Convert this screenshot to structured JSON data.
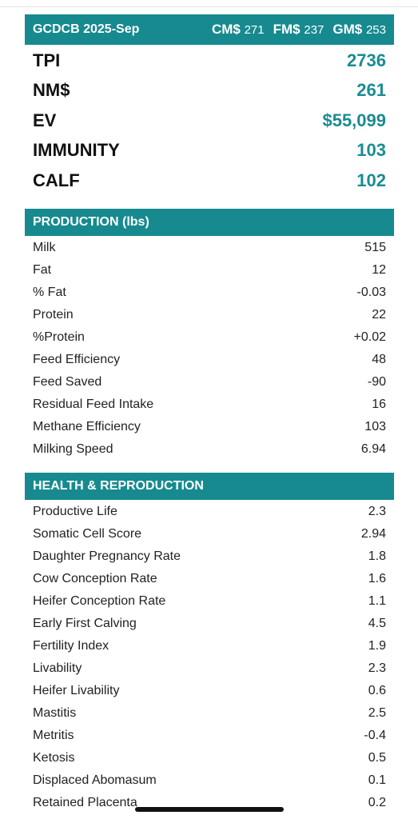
{
  "header": {
    "title": "GCDCB 2025-Sep",
    "merits": [
      {
        "label": "CM$",
        "value": "271"
      },
      {
        "label": "FM$",
        "value": "237"
      },
      {
        "label": "GM$",
        "value": "253"
      }
    ]
  },
  "summary": [
    {
      "label": "TPI",
      "value": "2736"
    },
    {
      "label": "NM$",
      "value": "261"
    },
    {
      "label": "EV",
      "value": "$55,099"
    },
    {
      "label": "IMMUNITY",
      "value": "103"
    },
    {
      "label": "CALF",
      "value": "102"
    }
  ],
  "production": {
    "title": "PRODUCTION (lbs)",
    "rows": [
      {
        "label": "Milk",
        "value": "515"
      },
      {
        "label": "Fat",
        "value": "12"
      },
      {
        "label": "% Fat",
        "value": "-0.03"
      },
      {
        "label": "Protein",
        "value": "22"
      },
      {
        "label": "%Protein",
        "value": "+0.02"
      },
      {
        "label": "Feed Efficiency",
        "value": "48"
      },
      {
        "label": "Feed Saved",
        "value": "-90"
      },
      {
        "label": "Residual Feed Intake",
        "value": "16"
      },
      {
        "label": "Methane Efficiency",
        "value": "103"
      },
      {
        "label": "Milking Speed",
        "value": "6.94"
      }
    ]
  },
  "health": {
    "title": "HEALTH & REPRODUCTION",
    "rows": [
      {
        "label": "Productive Life",
        "value": "2.3"
      },
      {
        "label": "Somatic Cell Score",
        "value": "2.94"
      },
      {
        "label": "Daughter Pregnancy Rate",
        "value": "1.8"
      },
      {
        "label": "Cow Conception Rate",
        "value": "1.6"
      },
      {
        "label": "Heifer Conception Rate",
        "value": "1.1"
      },
      {
        "label": "Early First Calving",
        "value": "4.5"
      },
      {
        "label": "Fertility Index",
        "value": "1.9"
      },
      {
        "label": "Livability",
        "value": "2.3"
      },
      {
        "label": "Heifer Livability",
        "value": "0.6"
      },
      {
        "label": "Mastitis",
        "value": "2.5"
      },
      {
        "label": "Metritis",
        "value": "-0.4"
      },
      {
        "label": "Ketosis",
        "value": "0.5"
      },
      {
        "label": "Displaced Abomasum",
        "value": "0.1"
      },
      {
        "label": "Retained Placenta",
        "value": "0.2"
      }
    ]
  },
  "colors": {
    "accent": "#168a8f",
    "value_teal": "#1a8c92"
  }
}
